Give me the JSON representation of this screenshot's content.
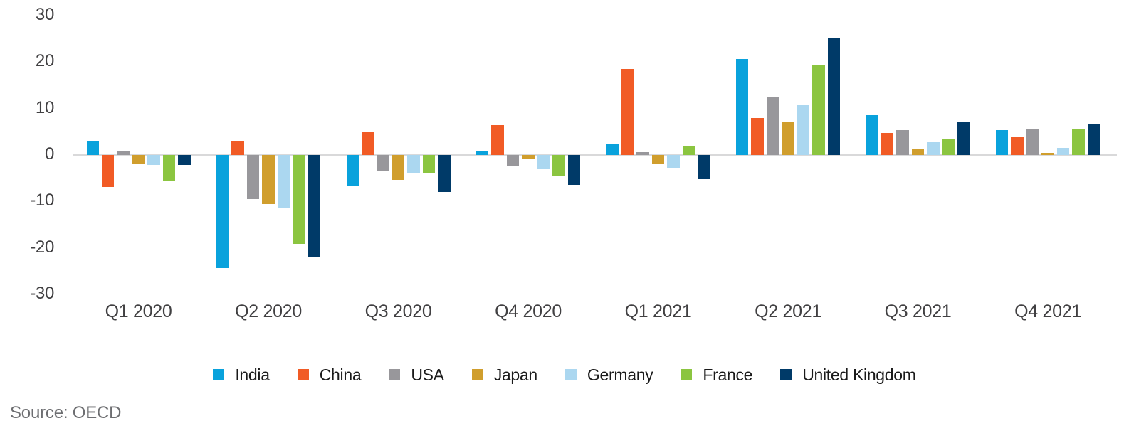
{
  "chart_data": {
    "type": "bar",
    "title": "",
    "xlabel": "",
    "ylabel": "",
    "ylim": [
      -30,
      30
    ],
    "yticks": [
      30,
      20,
      10,
      0,
      -10,
      -20,
      -30
    ],
    "grid": false,
    "legend_position": "bottom",
    "categories": [
      "Q1 2020",
      "Q2 2020",
      "Q3 2020",
      "Q4 2020",
      "Q1 2021",
      "Q2 2021",
      "Q3 2021",
      "Q4 2021"
    ],
    "series": [
      {
        "name": "India",
        "color": "#09A2DC",
        "values": [
          3.1,
          -24.3,
          -6.7,
          0.7,
          2.5,
          20.6,
          8.6,
          5.4
        ]
      },
      {
        "name": "China",
        "color": "#F15B25",
        "values": [
          -6.9,
          3.1,
          4.9,
          6.5,
          18.5,
          7.9,
          4.8,
          4.0
        ]
      },
      {
        "name": "USA",
        "color": "#98979B",
        "values": [
          0.7,
          -9.5,
          -3.3,
          -2.3,
          0.6,
          12.5,
          5.3,
          5.5
        ]
      },
      {
        "name": "Japan",
        "color": "#D09E2D",
        "values": [
          -1.9,
          -10.5,
          -5.3,
          -0.8,
          -2.0,
          7.1,
          1.2,
          0.5
        ]
      },
      {
        "name": "Germany",
        "color": "#ABD7F0",
        "values": [
          -2.1,
          -11.4,
          -3.9,
          -2.9,
          -2.8,
          10.8,
          2.7,
          1.5
        ]
      },
      {
        "name": "France",
        "color": "#8BC540",
        "values": [
          -5.6,
          -19.1,
          -3.8,
          -4.6,
          1.8,
          19.3,
          3.5,
          5.5
        ]
      },
      {
        "name": "United Kingdom",
        "color": "#003A68",
        "values": [
          -2.2,
          -21.9,
          -8.0,
          -6.4,
          -5.2,
          25.2,
          7.2,
          6.7
        ]
      }
    ]
  },
  "source_note": "Source: OECD"
}
